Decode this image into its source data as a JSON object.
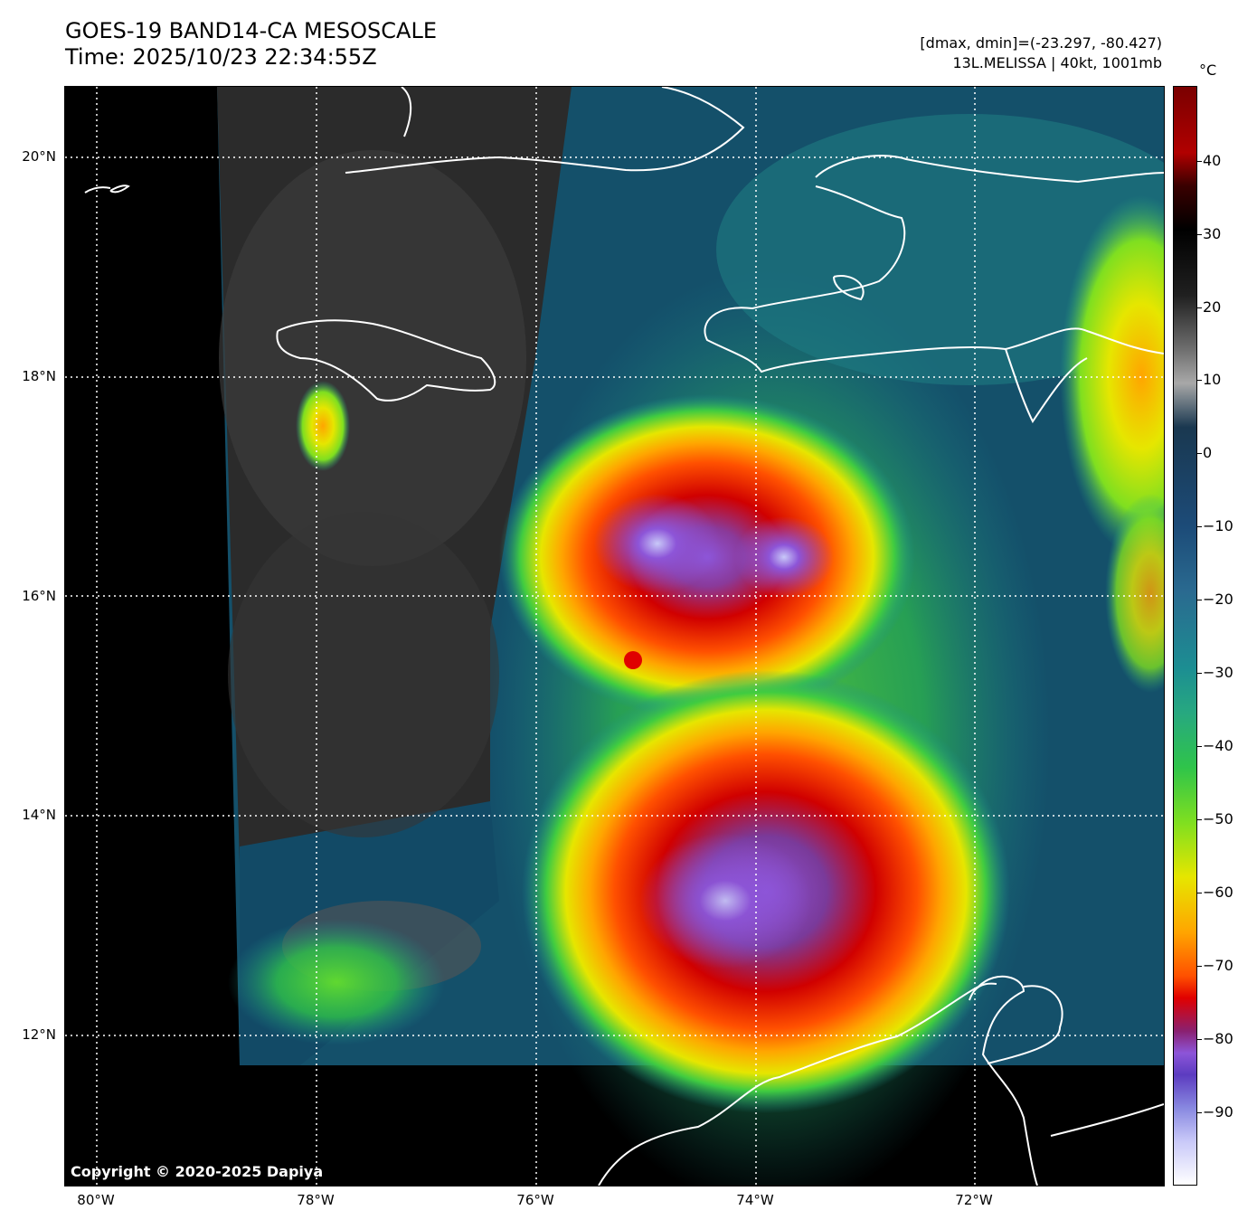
{
  "header": {
    "title_line1": "GOES-19 BAND14-CA MESOSCALE",
    "title_line2": "Time: 2025/10/23 22:34:55Z",
    "range_text": "[dmax, dmin]=(-23.297, -80.427)",
    "storm_text": "13L.MELISSA | 40kt, 1001mb"
  },
  "map": {
    "lat_labels": [
      "20°N",
      "18°N",
      "16°N",
      "14°N",
      "12°N"
    ],
    "lon_labels": [
      "80°W",
      "78°W",
      "76°W",
      "74°W",
      "72°W"
    ],
    "copyright": "Copyright © 2020-2025 Dapiya"
  },
  "colorbar": {
    "unit": "°C",
    "tick_labels": [
      "40",
      "30",
      "20",
      "10",
      "0",
      "−10",
      "−20",
      "−30",
      "−40",
      "−50",
      "−60",
      "−70",
      "−80",
      "−90"
    ]
  }
}
